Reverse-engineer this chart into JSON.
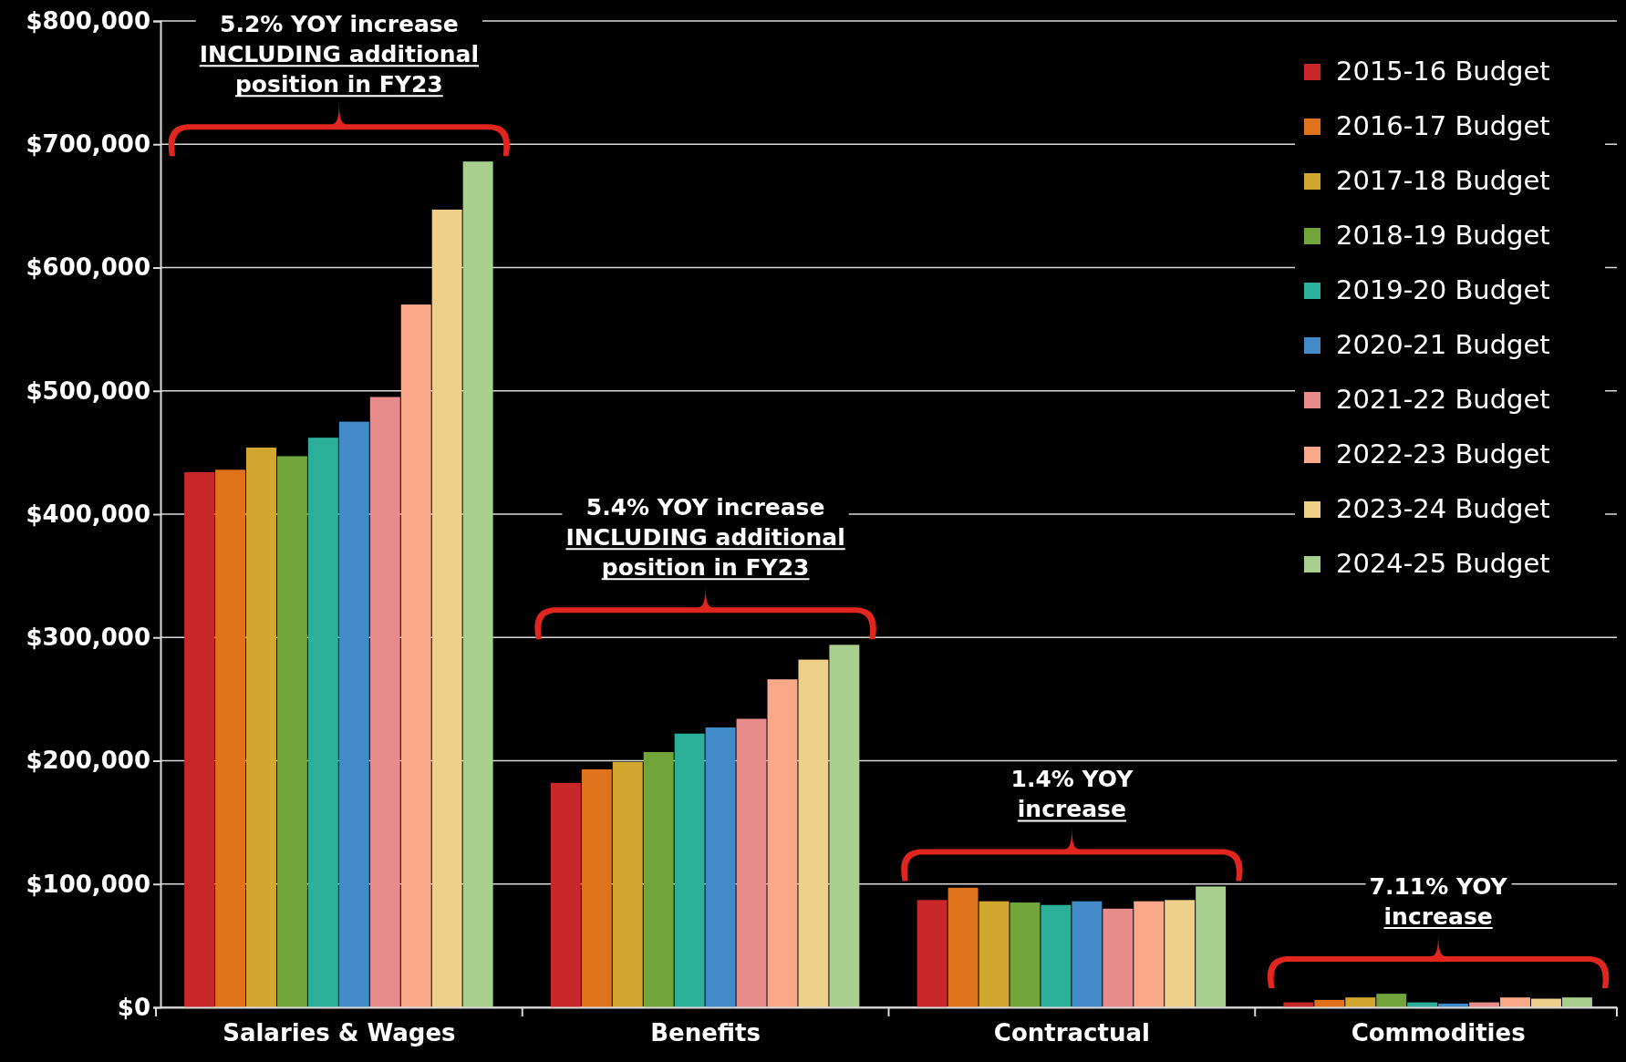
{
  "chart_data": {
    "type": "bar",
    "categories": [
      "Salaries & Wages",
      "Benefits",
      "Contractual",
      "Commodities"
    ],
    "series": [
      {
        "name": "2015-16 Budget",
        "color": "#c9282a",
        "values": [
          434000,
          182000,
          87000,
          4000
        ]
      },
      {
        "name": "2016-17 Budget",
        "color": "#e0721c",
        "values": [
          436000,
          193000,
          97000,
          6000
        ]
      },
      {
        "name": "2017-18 Budget",
        "color": "#d1a730",
        "values": [
          454000,
          199000,
          86000,
          8000
        ]
      },
      {
        "name": "2018-19 Budget",
        "color": "#71a53b",
        "values": [
          447000,
          207000,
          85000,
          11000
        ]
      },
      {
        "name": "2019-20 Budget",
        "color": "#2cb09a",
        "values": [
          462000,
          222000,
          83000,
          4000
        ]
      },
      {
        "name": "2020-21 Budget",
        "color": "#428ac8",
        "values": [
          475000,
          227000,
          86000,
          3000
        ]
      },
      {
        "name": "2021-22 Budget",
        "color": "#e88b8b",
        "values": [
          495000,
          234000,
          80000,
          4000
        ]
      },
      {
        "name": "2022-23 Budget",
        "color": "#f9a98a",
        "values": [
          570000,
          266000,
          86000,
          8000
        ]
      },
      {
        "name": "2023-24 Budget",
        "color": "#efd08b",
        "values": [
          647000,
          282000,
          87000,
          7000
        ]
      },
      {
        "name": "2024-25 Budget",
        "color": "#a9cf8f",
        "values": [
          686000,
          294000,
          98000,
          8000
        ]
      }
    ],
    "ylim": [
      0,
      800000
    ],
    "yticks": [
      {
        "value": 0,
        "label": "$0"
      },
      {
        "value": 100000,
        "label": "$100,000"
      },
      {
        "value": 200000,
        "label": "$200,000"
      },
      {
        "value": 300000,
        "label": "$300,000"
      },
      {
        "value": 400000,
        "label": "$400,000"
      },
      {
        "value": 500000,
        "label": "$500,000"
      },
      {
        "value": 600000,
        "label": "$600,000"
      },
      {
        "value": 700000,
        "label": "$700,000"
      },
      {
        "value": 800000,
        "label": "$800,000"
      }
    ],
    "grid": "y",
    "legend": "right",
    "annotations": [
      "5.2% YOY increase\nINCLUDING additional\nposition in FY23",
      "5.4% YOY increase\nINCLUDING additional\nposition in FY23",
      "1.4% YOY\nincrease",
      "7.11% YOY\nincrease"
    ]
  }
}
